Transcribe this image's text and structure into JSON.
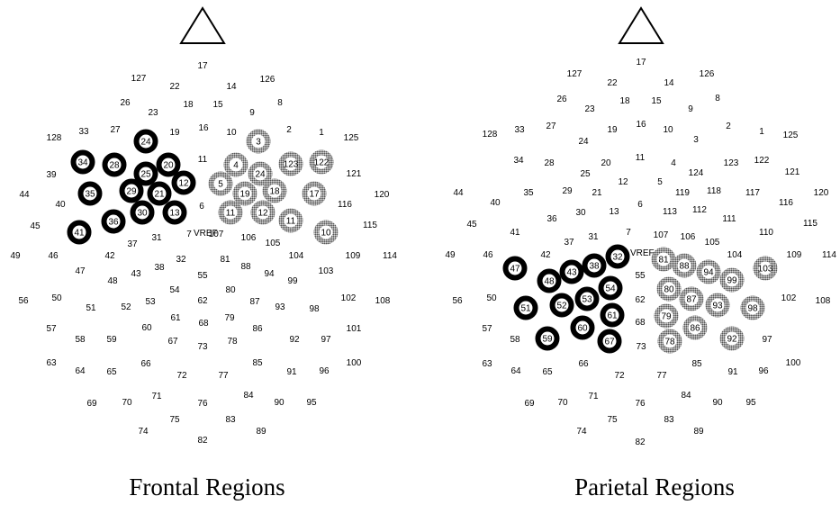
{
  "frontal": {
    "caption": "Frontal Regions",
    "vref_label": "VREF",
    "highlight_left": [
      "24",
      "34",
      "28",
      "25",
      "20",
      "35",
      "29",
      "21",
      "12",
      "41",
      "36",
      "30",
      "13"
    ],
    "highlight_right": [
      "3",
      "4",
      "24",
      "123",
      "122",
      "5",
      "19",
      "18",
      "17",
      "11",
      "12",
      "11",
      "10"
    ],
    "electrodes": [
      "17",
      "127",
      "22",
      "14",
      "126",
      "26",
      "18",
      "15",
      "8",
      "23",
      "9",
      "128",
      "33",
      "27",
      "19",
      "16",
      "10",
      "2",
      "1",
      "125",
      "11",
      "39",
      "121",
      "44",
      "40",
      "6",
      "116",
      "120",
      "45",
      "115",
      "37",
      "31",
      "7",
      "107",
      "106",
      "105",
      "49",
      "46",
      "42",
      "32",
      "81",
      "104",
      "109",
      "114",
      "47",
      "38",
      "88",
      "103",
      "48",
      "43",
      "55",
      "94",
      "99",
      "54",
      "80",
      "56",
      "50",
      "53",
      "62",
      "87",
      "102",
      "108",
      "51",
      "52",
      "61",
      "93",
      "98",
      "68",
      "79",
      "57",
      "60",
      "86",
      "101",
      "58",
      "59",
      "67",
      "73",
      "78",
      "92",
      "97",
      "66",
      "63",
      "64",
      "65",
      "72",
      "77",
      "85",
      "100",
      "91",
      "96",
      "71",
      "84",
      "69",
      "70",
      "76",
      "90",
      "95",
      "75",
      "83",
      "74",
      "89",
      "82"
    ]
  },
  "parietal": {
    "caption": "Parietal Regions",
    "vref_label": "VREF",
    "highlight_left": [
      "32",
      "47",
      "43",
      "38",
      "48",
      "54",
      "53",
      "51",
      "52",
      "61",
      "60",
      "59",
      "67"
    ],
    "highlight_right": [
      "81",
      "88",
      "94",
      "103",
      "99",
      "80",
      "87",
      "93",
      "98",
      "79",
      "86",
      "78",
      "92"
    ],
    "electrodes": [
      "17",
      "127",
      "22",
      "14",
      "126",
      "26",
      "18",
      "15",
      "8",
      "23",
      "9",
      "128",
      "33",
      "27",
      "19",
      "16",
      "10",
      "2",
      "1",
      "125",
      "24",
      "3",
      "34",
      "28",
      "20",
      "11",
      "4",
      "123",
      "122",
      "25",
      "124",
      "121",
      "44",
      "35",
      "29",
      "21",
      "12",
      "5",
      "119",
      "118",
      "117",
      "120",
      "40",
      "13",
      "6",
      "113",
      "112",
      "116",
      "45",
      "36",
      "30",
      "111",
      "115",
      "41",
      "37",
      "31",
      "7",
      "107",
      "106",
      "110",
      "105",
      "49",
      "46",
      "42",
      "104",
      "109",
      "114",
      "55",
      "56",
      "50",
      "62",
      "102",
      "108",
      "68",
      "57",
      "58",
      "73",
      "97",
      "63",
      "64",
      "65",
      "66",
      "72",
      "77",
      "85",
      "91",
      "96",
      "100",
      "71",
      "84",
      "69",
      "70",
      "76",
      "90",
      "95",
      "75",
      "83",
      "74",
      "89",
      "82"
    ]
  }
}
